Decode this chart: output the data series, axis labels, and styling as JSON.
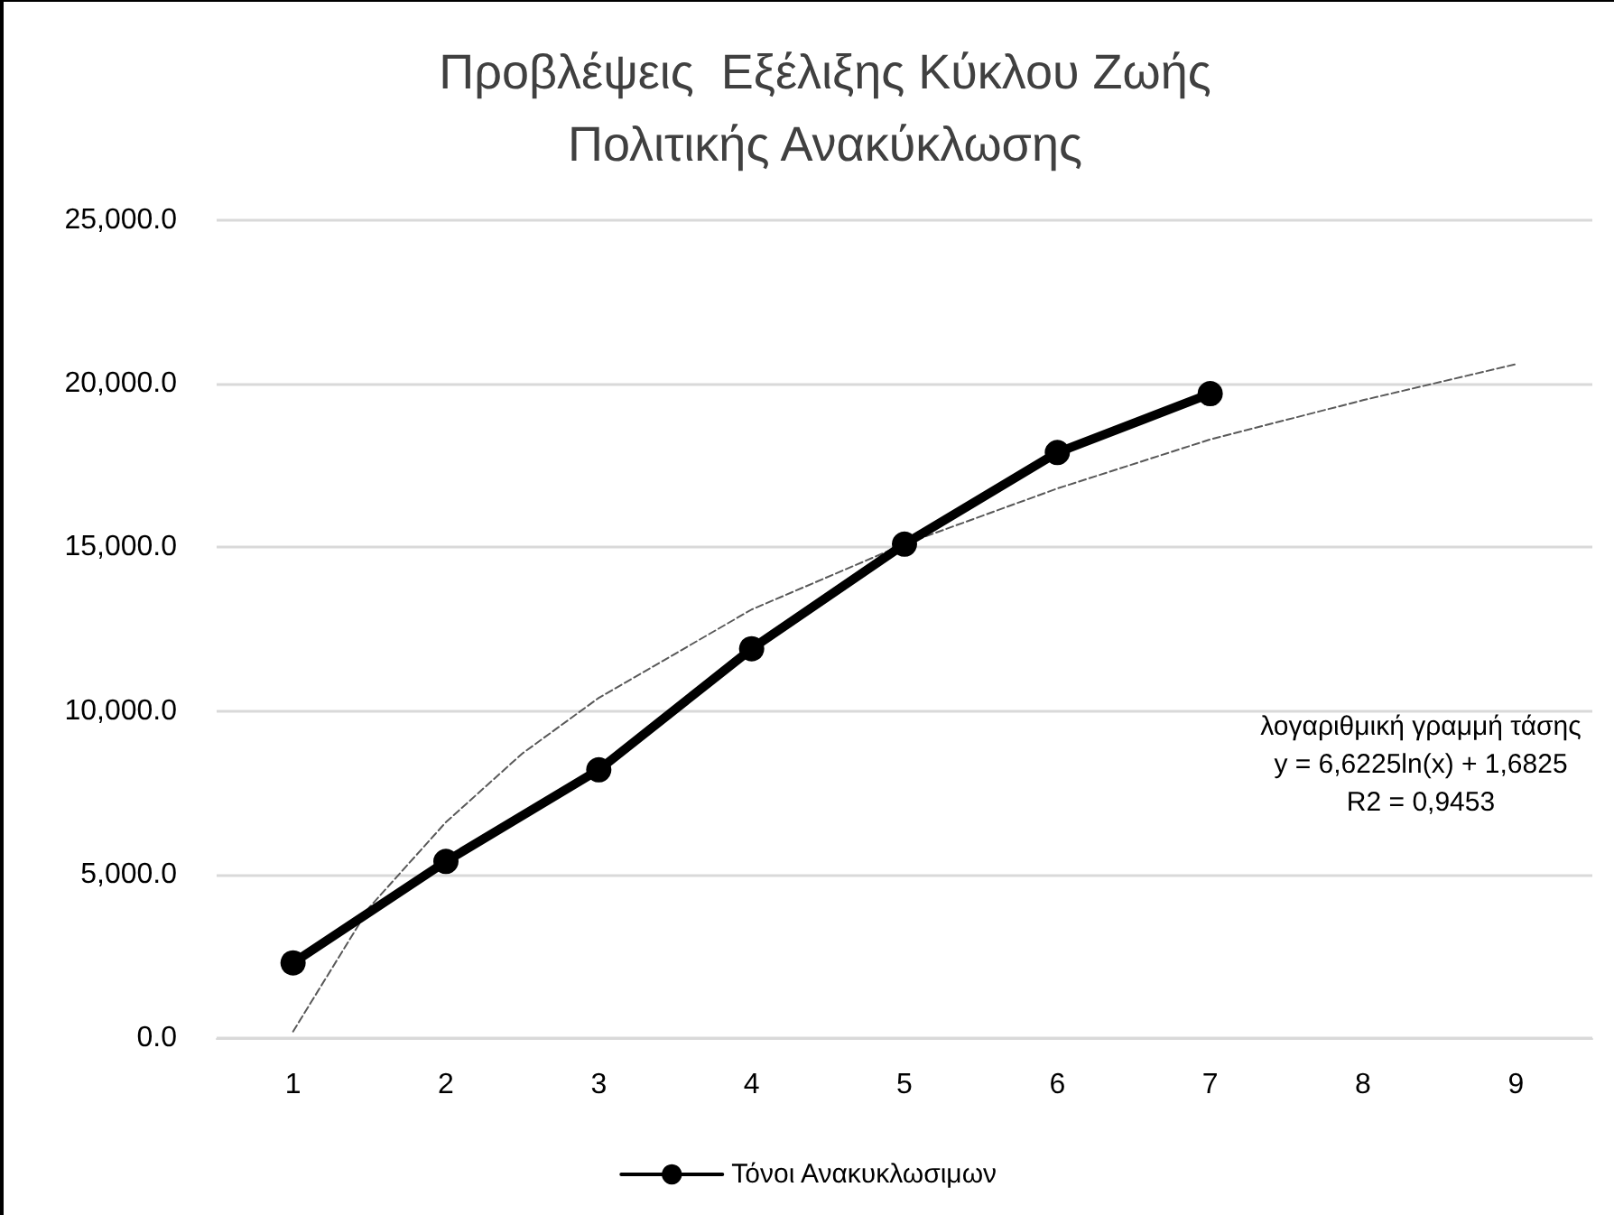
{
  "chart_data": {
    "type": "line",
    "title": "Προβλέψεις  Εξέλιξης Κύκλου Ζωής\nΠολιτικής Ανακύκλωσης",
    "x": [
      1,
      2,
      3,
      4,
      5,
      6,
      7
    ],
    "series": [
      {
        "name": "Τόνοι Ανακυκλωσιμων",
        "color": "#000000",
        "values": [
          2300,
          5400,
          8200,
          11900,
          15100,
          17900,
          19700
        ],
        "marker": "circle",
        "line_style": "solid"
      },
      {
        "type": "line",
        "color": "#595959",
        "x": [
          1,
          1.5,
          2,
          2.5,
          3,
          4,
          5,
          6,
          7,
          8,
          9
        ],
        "values": [
          200,
          4000,
          6600,
          8700,
          10400,
          13100,
          15100,
          16800,
          18300,
          19500,
          20600
        ],
        "marker": "none",
        "line_style": "dashed"
      }
    ],
    "xlim": [
      0.5,
      9.5
    ],
    "xticks": [
      1,
      2,
      3,
      4,
      5,
      6,
      7,
      8,
      9
    ],
    "ylim": [
      0,
      25000
    ],
    "yticks": [
      {
        "value": 0,
        "label": "0.0"
      },
      {
        "value": 5000,
        "label": "5,000.0"
      },
      {
        "value": 10000,
        "label": "10,000.0"
      },
      {
        "value": 15000,
        "label": "15,000.0"
      },
      {
        "value": 20000,
        "label": "20,000.0"
      },
      {
        "value": 25000,
        "label": "25,000.0"
      }
    ],
    "grid": "y",
    "legend": "bottom",
    "annotations": [
      "λογαριθμική γραμμή τάσης",
      "y = 6,6225ln(x) + 1,6825",
      "R2 = 0,9453"
    ]
  }
}
